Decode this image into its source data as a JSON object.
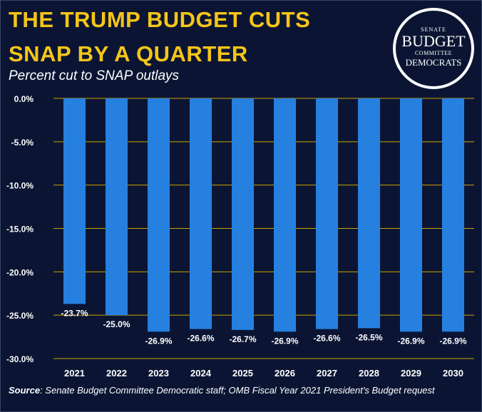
{
  "title_line1": "THE TRUMP BUDGET CUTS",
  "title_line2": "SNAP BY A QUARTER",
  "subtitle": "Percent cut to SNAP outlays",
  "logo": {
    "line1": "SENATE",
    "line2": "BUDGET",
    "line3": "COMMITTEE",
    "line4": "DEMOCRATS"
  },
  "source_label": "Source",
  "source_text": ": Senate Budget Committee Democratic staff; OMB Fiscal Year 2021 President's Budget request",
  "colors": {
    "background": "#0b1533",
    "bar": "#2680e0",
    "title": "#f5c518",
    "gridline": "#c9a400",
    "text": "#ffffff"
  },
  "chart_data": {
    "type": "bar",
    "categories": [
      "2021",
      "2022",
      "2023",
      "2024",
      "2025",
      "2026",
      "2027",
      "2028",
      "2029",
      "2030"
    ],
    "values": [
      -23.7,
      -25.0,
      -26.9,
      -26.6,
      -26.7,
      -26.9,
      -26.6,
      -26.5,
      -26.9,
      -26.9
    ],
    "data_labels": [
      "-23.7%",
      "-25.0%",
      "-26.9%",
      "-26.6%",
      "-26.7%",
      "-26.9%",
      "-26.6%",
      "-26.5%",
      "-26.9%",
      "-26.9%"
    ],
    "yticks": [
      "0.0%",
      "-5.0%",
      "-10.0%",
      "-15.0%",
      "-20.0%",
      "-25.0%",
      "-30.0%"
    ],
    "ytick_values": [
      0,
      -5,
      -10,
      -15,
      -20,
      -25,
      -30
    ],
    "ylim": [
      -30,
      0
    ],
    "grid": true,
    "legend": "none"
  }
}
